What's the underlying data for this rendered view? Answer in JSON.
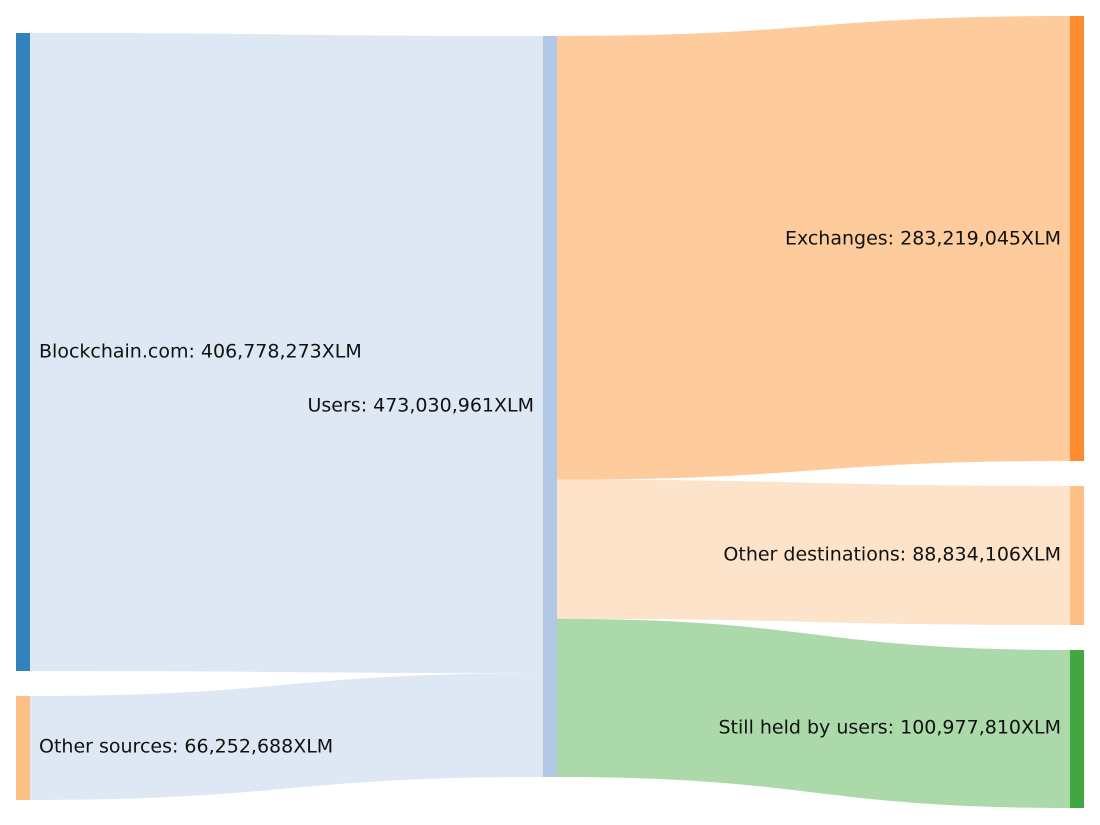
{
  "diagram": {
    "type": "sankey",
    "unit": "XLM",
    "nodes": [
      {
        "id": "blockchain",
        "label": "Blockchain.com: 406,778,273XLM",
        "value": 406778273,
        "color": "#3182bd"
      },
      {
        "id": "other-sources",
        "label": "Other sources: 66,252,688XLM",
        "value": 66252688,
        "color": "#fdbf85"
      },
      {
        "id": "users",
        "label": "Users: 473,030,961XLM",
        "value": 473030961,
        "color": "#b3c7e6"
      },
      {
        "id": "exchanges",
        "label": "Exchanges: 283,219,045XLM",
        "value": 283219045,
        "color": "#fd8d2c"
      },
      {
        "id": "other-destinations",
        "label": "Other destinations: 88,834,106XLM",
        "value": 88834106,
        "color": "#fdbf85"
      },
      {
        "id": "still-held",
        "label": "Still held by users: 100,977,810XLM",
        "value": 100977810,
        "color": "#41a740"
      }
    ],
    "links": [
      {
        "source": "blockchain",
        "target": "users",
        "value": 406778273,
        "color": "#dee8f5"
      },
      {
        "source": "other-sources",
        "target": "users",
        "value": 66252688,
        "color": "#dee8f5"
      },
      {
        "source": "users",
        "target": "exchanges",
        "value": 283219045,
        "color": "#fdcb9c"
      },
      {
        "source": "users",
        "target": "other-destinations",
        "value": 88834106,
        "color": "#fde3c9"
      },
      {
        "source": "users",
        "target": "still-held",
        "value": 100977810,
        "color": "#abd9a9"
      }
    ]
  }
}
